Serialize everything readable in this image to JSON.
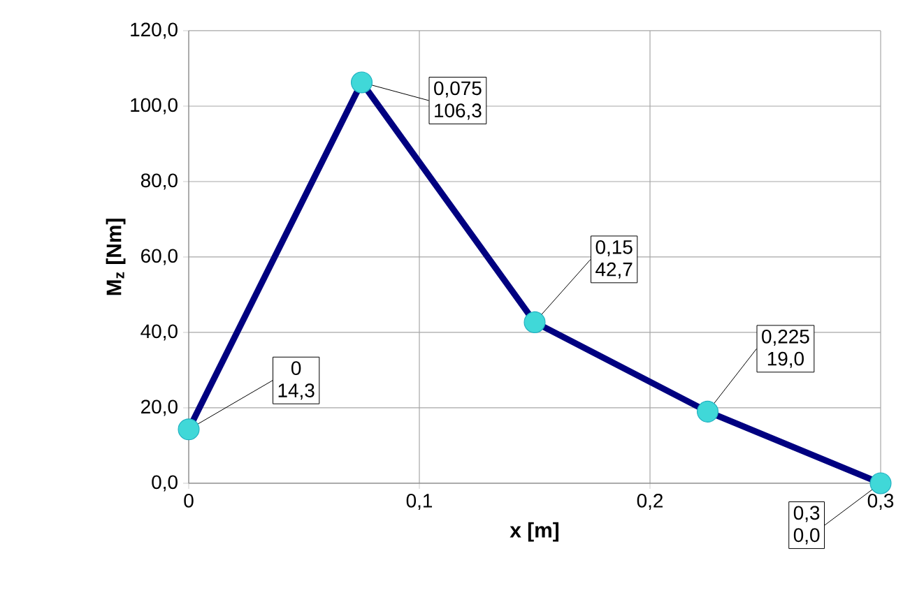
{
  "chart_data": {
    "type": "line",
    "xlabel": "x [m]",
    "ylabel": "M$_{z}$ [Nm]",
    "x": [
      0,
      0.075,
      0.15,
      0.225,
      0.3
    ],
    "series": [
      {
        "color": "#000080",
        "values": [
          14.3,
          106.3,
          42.7,
          19.0,
          0.0
        ],
        "value_labels": [
          "14,3",
          "106,3",
          "42,7",
          "19,0",
          "0,0"
        ]
      }
    ],
    "annotations": [
      {
        "text": "0",
        "x": 0,
        "y": 14.3
      },
      {
        "text": "0,075",
        "x": 0.075,
        "y": 106.3
      },
      {
        "text": "0,15",
        "x": 0.15,
        "y": 42.7
      },
      {
        "text": "0,225",
        "x": 0.225,
        "y": 19.0
      },
      {
        "text": "0,3",
        "x": 0.3,
        "y": 0.0
      }
    ],
    "xlim": [
      0,
      0.3
    ],
    "xticks": [
      {
        "value": 0,
        "label": "0"
      },
      {
        "value": 0.1,
        "label": "0,1"
      },
      {
        "value": 0.2,
        "label": "0,2"
      },
      {
        "value": 0.3,
        "label": "0,3"
      }
    ],
    "ylim": [
      0,
      120
    ],
    "yticks": [
      {
        "value": 0,
        "label": "0,0"
      },
      {
        "value": 20,
        "label": "20,0"
      },
      {
        "value": 40,
        "label": "40,0"
      },
      {
        "value": 60,
        "label": "60,0"
      },
      {
        "value": 80,
        "label": "80,0"
      },
      {
        "value": 100,
        "label": "100,0"
      },
      {
        "value": 120,
        "label": "120,0"
      }
    ],
    "grid": true,
    "marker": "circle",
    "line_style": "solid"
  }
}
